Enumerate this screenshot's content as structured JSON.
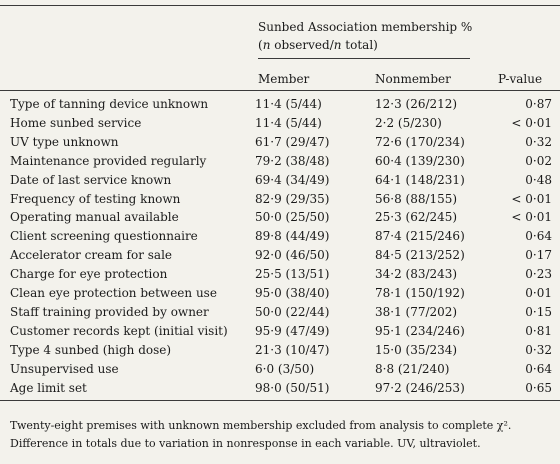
{
  "header": {
    "group_title": "Sunbed Association membership %",
    "group_subtitle_parts": [
      "n",
      " observed/",
      "n",
      " total)"
    ],
    "col_member": "Member",
    "col_nonmember": "Nonmember",
    "col_pvalue": "P-value"
  },
  "rows": [
    {
      "variable": "Type of tanning device unknown",
      "member": "11·4 (5/44)",
      "nonmember": "12·3 (26/212)",
      "p": "0·87"
    },
    {
      "variable": "Home sunbed service",
      "member": "11·4 (5/44)",
      "nonmember": "2·2 (5/230)",
      "p": "< 0·01"
    },
    {
      "variable": "UV type unknown",
      "member": "61·7 (29/47)",
      "nonmember": "72·6 (170/234)",
      "p": "0·32"
    },
    {
      "variable": "Maintenance provided regularly",
      "member": "79·2 (38/48)",
      "nonmember": "60·4 (139/230)",
      "p": "0·02"
    },
    {
      "variable": "Date of last service known",
      "member": "69·4 (34/49)",
      "nonmember": "64·1 (148/231)",
      "p": "0·48"
    },
    {
      "variable": "Frequency of testing known",
      "member": "82·9 (29/35)",
      "nonmember": "56·8 (88/155)",
      "p": "< 0·01"
    },
    {
      "variable": "Operating manual available",
      "member": "50·0 (25/50)",
      "nonmember": "25·3 (62/245)",
      "p": "< 0·01"
    },
    {
      "variable": "Client screening questionnaire",
      "member": "89·8 (44/49)",
      "nonmember": "87·4 (215/246)",
      "p": "0·64"
    },
    {
      "variable": "Accelerator cream for sale",
      "member": "92·0 (46/50)",
      "nonmember": "84·5 (213/252)",
      "p": "0·17"
    },
    {
      "variable": "Charge for eye protection",
      "member": "25·5 (13/51)",
      "nonmember": "34·2 (83/243)",
      "p": "0·23"
    },
    {
      "variable": "Clean eye protection between use",
      "member": "95·0 (38/40)",
      "nonmember": "78·1 (150/192)",
      "p": "0·01"
    },
    {
      "variable": "Staff training provided by owner",
      "member": "50·0 (22/44)",
      "nonmember": "38·1 (77/202)",
      "p": "0·15"
    },
    {
      "variable": "Customer records kept (initial visit)",
      "member": "95·9 (47/49)",
      "nonmember": "95·1 (234/246)",
      "p": "0·81"
    },
    {
      "variable": "Type 4 sunbed (high dose)",
      "member": "21·3 (10/47)",
      "nonmember": "15·0 (35/234)",
      "p": "0·32"
    },
    {
      "variable": "Unsupervised use",
      "member": "6·0 (3/50)",
      "nonmember": "8·8 (21/240)",
      "p": "0·64"
    },
    {
      "variable": "Age limit set",
      "member": "98·0 (50/51)",
      "nonmember": "97·2 (246/253)",
      "p": "0·65"
    }
  ],
  "footnotes": [
    "Twenty-eight premises with unknown membership excluded from analysis to complete χ².",
    "Difference in totals due to variation in nonresponse in each variable. UV, ultraviolet."
  ]
}
